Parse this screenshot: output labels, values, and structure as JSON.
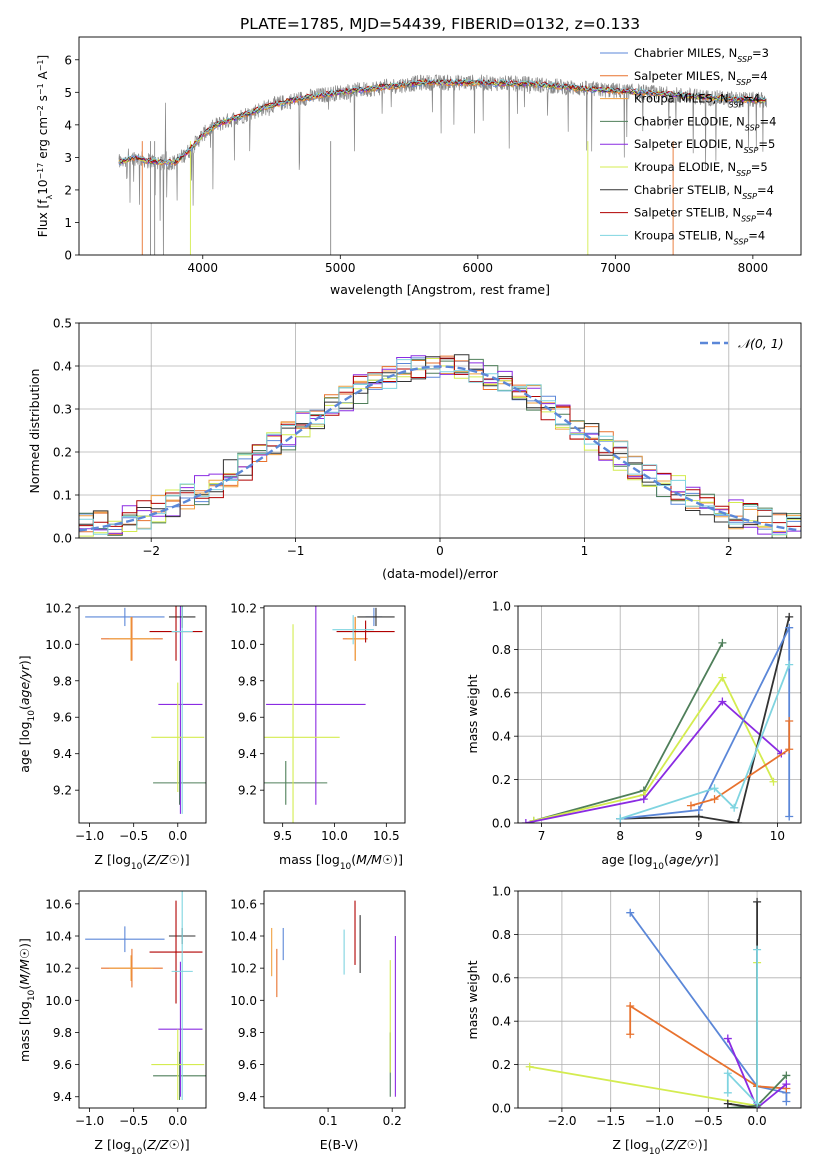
{
  "figure_title": "PLATE=1785, MJD=54439, FIBERID=0132, z=0.133",
  "colors": {
    "Chabrier MILES": "#5b87d8",
    "Salpeter MILES": "#e8722e",
    "Kroupa MILES": "#f0a040",
    "Chabrier ELODIE": "#4f7f5a",
    "Salpeter ELODIE": "#8a2be2",
    "Kroupa ELODIE": "#d4ec50",
    "Chabrier STELIB": "#333333",
    "Salpeter STELIB": "#b00000",
    "Kroupa STELIB": "#7fd4e0"
  },
  "chart_data": [
    {
      "id": "spectrum",
      "type": "line",
      "title": "",
      "xlabel": "wavelength [Angstrom, rest frame]",
      "ylabel": "Flux [f_λ 10^-17 erg cm^-2 s^-1 A^-1]",
      "xlim": [
        3100,
        8350
      ],
      "ylim": [
        0,
        6.7
      ],
      "xticks": [
        "4000",
        "5000",
        "6000",
        "7000",
        "8000"
      ],
      "yticks": [
        "0",
        "1",
        "2",
        "3",
        "4",
        "5",
        "6"
      ],
      "grid": false,
      "legend_position": "right",
      "legend": [
        {
          "key": "Chabrier MILES",
          "label": "Chabrier MILES, N",
          "sub": "SSP",
          "eq": "=3"
        },
        {
          "key": "Salpeter MILES",
          "label": "Salpeter MILES, N",
          "sub": "SSP",
          "eq": "=4"
        },
        {
          "key": "Kroupa MILES",
          "label": "Kroupa MILES, N",
          "sub": "SSP",
          "eq": "=4"
        },
        {
          "key": "Chabrier ELODIE",
          "label": "Chabrier ELODIE, N",
          "sub": "SSP",
          "eq": "=4"
        },
        {
          "key": "Salpeter ELODIE",
          "label": "Salpeter ELODIE, N",
          "sub": "SSP",
          "eq": "=5"
        },
        {
          "key": "Kroupa ELODIE",
          "label": "Kroupa ELODIE, N",
          "sub": "SSP",
          "eq": "=5"
        },
        {
          "key": "Chabrier STELIB",
          "label": "Chabrier STELIB, N",
          "sub": "SSP",
          "eq": "=4"
        },
        {
          "key": "Salpeter STELIB",
          "label": "Salpeter STELIB, N",
          "sub": "SSP",
          "eq": "=4"
        },
        {
          "key": "Kroupa STELIB",
          "label": "Kroupa STELIB, N",
          "sub": "SSP",
          "eq": "=4"
        }
      ],
      "continuum": {
        "x": [
          3390,
          3500,
          3600,
          3700,
          3800,
          3900,
          4000,
          4100,
          4200,
          4300,
          4500,
          4700,
          5000,
          5300,
          5600,
          6000,
          6400,
          6800,
          7200,
          7500,
          7800,
          8100
        ],
        "y": [
          2.85,
          3.0,
          2.9,
          2.85,
          2.85,
          3.2,
          3.7,
          4.0,
          4.15,
          4.3,
          4.6,
          4.8,
          5.0,
          5.15,
          5.3,
          5.3,
          5.25,
          5.1,
          5.0,
          4.9,
          4.8,
          4.75
        ]
      },
      "observed_xrange": [
        3390,
        8100
      ]
    },
    {
      "id": "residuals",
      "type": "histogram",
      "xlabel": "(data-model)/error",
      "ylabel": "Normed distribution",
      "xlim": [
        -2.5,
        2.5
      ],
      "ylim": [
        0,
        0.5
      ],
      "xticks": [
        "−2",
        "−1",
        "0",
        "1",
        "2"
      ],
      "yticks": [
        "0.0",
        "0.1",
        "0.2",
        "0.3",
        "0.4",
        "0.5"
      ],
      "grid": true,
      "legend_position": "top-right",
      "reference_label": "𝒩(0, 1)",
      "reference_color": "#5b87d8",
      "bin_width": 0.1
    },
    {
      "id": "age-Z",
      "type": "scatter",
      "xlabel": "Z [log10(Z/Z☉)]",
      "ylabel": "age  [log10(age/yr)]",
      "xlim": [
        -1.12,
        0.32
      ],
      "ylim": [
        9.02,
        10.21
      ],
      "xticks": [
        "−1.0",
        "−0.5",
        "0.0"
      ],
      "yticks": [
        "9.2",
        "9.4",
        "9.6",
        "9.8",
        "10.0",
        "10.2"
      ],
      "grid": false,
      "points": [
        {
          "key": "Chabrier MILES",
          "x": -0.6,
          "y": 10.15,
          "xerr": 0.45,
          "yerr": 0.05
        },
        {
          "key": "Salpeter MILES",
          "x": -0.52,
          "y": 10.03,
          "xerr": 0.35,
          "yerr": 0.12
        },
        {
          "key": "Kroupa MILES",
          "x": -0.53,
          "y": 10.03,
          "xerr": 0.25,
          "yerr": 0.12
        },
        {
          "key": "Chabrier ELODIE",
          "x": 0.02,
          "y": 9.24,
          "xerr": 0.3,
          "yerr": 0.12
        },
        {
          "key": "Salpeter ELODIE",
          "x": 0.03,
          "y": 9.67,
          "xerr": 0.25,
          "yerr": 0.6
        },
        {
          "key": "Kroupa ELODIE",
          "x": 0.0,
          "y": 9.49,
          "xerr": 0.3,
          "yerr": 0.3
        },
        {
          "key": "Chabrier STELIB",
          "x": 0.05,
          "y": 10.15,
          "xerr": 0.15,
          "yerr": 0.06
        },
        {
          "key": "Salpeter STELIB",
          "x": -0.02,
          "y": 10.07,
          "xerr": 0.3,
          "yerr": 0.16
        },
        {
          "key": "Kroupa STELIB",
          "x": 0.05,
          "y": 10.07,
          "xerr": 0.12,
          "yerr": 1.0
        }
      ]
    },
    {
      "id": "age-mass",
      "type": "scatter",
      "xlabel": "mass [log10(M/M☉)]",
      "ylabel": "",
      "xlim": [
        9.32,
        10.68
      ],
      "ylim": [
        9.02,
        10.21
      ],
      "xticks": [
        "9.5",
        "10.0",
        "10.5"
      ],
      "yticks": [
        "9.2",
        "9.4",
        "9.6",
        "9.8",
        "10.0",
        "10.2"
      ],
      "grid": false,
      "points": [
        {
          "key": "Chabrier MILES",
          "x": 10.38,
          "y": 10.15,
          "xerr": 0.08,
          "yerr": 0.05
        },
        {
          "key": "Salpeter MILES",
          "x": 10.2,
          "y": 10.03,
          "xerr": 0.12,
          "yerr": 0.12
        },
        {
          "key": "Kroupa MILES",
          "x": 10.2,
          "y": 10.03,
          "xerr": 0.08,
          "yerr": 0.12
        },
        {
          "key": "Chabrier ELODIE",
          "x": 9.53,
          "y": 9.24,
          "xerr": 0.4,
          "yerr": 0.12
        },
        {
          "key": "Salpeter ELODIE",
          "x": 9.82,
          "y": 9.67,
          "xerr": 0.48,
          "yerr": 0.55
        },
        {
          "key": "Kroupa ELODIE",
          "x": 9.6,
          "y": 9.49,
          "xerr": 0.45,
          "yerr": 0.62
        },
        {
          "key": "Chabrier STELIB",
          "x": 10.4,
          "y": 10.15,
          "xerr": 0.18,
          "yerr": 0.05
        },
        {
          "key": "Salpeter STELIB",
          "x": 10.3,
          "y": 10.07,
          "xerr": 0.28,
          "yerr": 0.06
        },
        {
          "key": "Kroupa STELIB",
          "x": 10.18,
          "y": 10.08,
          "xerr": 0.2,
          "yerr": 0.08
        }
      ]
    },
    {
      "id": "weight-age",
      "type": "line",
      "xlabel": "age  [log10(age/yr)]",
      "ylabel": "mass weight",
      "xlim": [
        6.7,
        10.3
      ],
      "ylim": [
        0,
        1
      ],
      "xticks": [
        "7",
        "8",
        "9",
        "10"
      ],
      "yticks": [
        "0.0",
        "0.2",
        "0.4",
        "0.6",
        "0.8",
        "1.0"
      ],
      "grid": true,
      "series": [
        {
          "key": "Chabrier ELODIE",
          "x": [
            6.9,
            8.3,
            9.3
          ],
          "y": [
            0.01,
            0.15,
            0.83
          ]
        },
        {
          "key": "Kroupa ELODIE",
          "x": [
            6.9,
            8.3,
            9.3,
            9.95
          ],
          "y": [
            0.01,
            0.13,
            0.67,
            0.19
          ]
        },
        {
          "key": "Salpeter ELODIE",
          "x": [
            6.8,
            8.3,
            9.3,
            10.05
          ],
          "y": [
            0.0,
            0.11,
            0.56,
            0.32
          ]
        },
        {
          "key": "Chabrier STELIB",
          "x": [
            8.0,
            9.0,
            9.5,
            10.15
          ],
          "y": [
            0.02,
            0.03,
            0.0,
            0.95
          ]
        },
        {
          "key": "Chabrier MILES",
          "x": [
            8.0,
            9.0,
            10.15,
            10.15
          ],
          "y": [
            0.02,
            0.06,
            0.9,
            0.03
          ]
        },
        {
          "key": "Salpeter MILES",
          "x": [
            8.9,
            9.2,
            10.15,
            10.15
          ],
          "y": [
            0.08,
            0.11,
            0.34,
            0.47
          ]
        },
        {
          "key": "Kroupa STELIB",
          "x": [
            8.0,
            9.2,
            9.45,
            10.15
          ],
          "y": [
            0.02,
            0.16,
            0.07,
            0.73
          ]
        }
      ]
    },
    {
      "id": "mass-Z",
      "type": "scatter",
      "xlabel": "Z [log10(Z/Z☉)]",
      "ylabel": "mass [log10(M/M☉)]",
      "xlim": [
        -1.12,
        0.32
      ],
      "ylim": [
        9.33,
        10.68
      ],
      "xticks": [
        "−1.0",
        "−0.5",
        "0.0"
      ],
      "yticks": [
        "9.4",
        "9.6",
        "9.8",
        "10.0",
        "10.2",
        "10.4",
        "10.6"
      ],
      "grid": false,
      "points": [
        {
          "key": "Chabrier MILES",
          "x": -0.6,
          "y": 10.38,
          "xerr": 0.45,
          "yerr": 0.08
        },
        {
          "key": "Salpeter MILES",
          "x": -0.52,
          "y": 10.2,
          "xerr": 0.35,
          "yerr": 0.12
        },
        {
          "key": "Kroupa MILES",
          "x": -0.53,
          "y": 10.2,
          "xerr": 0.25,
          "yerr": 0.08
        },
        {
          "key": "Chabrier ELODIE",
          "x": 0.02,
          "y": 9.53,
          "xerr": 0.3,
          "yerr": 0.15
        },
        {
          "key": "Salpeter ELODIE",
          "x": 0.03,
          "y": 9.82,
          "xerr": 0.25,
          "yerr": 0.42
        },
        {
          "key": "Kroupa ELODIE",
          "x": 0.0,
          "y": 9.6,
          "xerr": 0.3,
          "yerr": 0.22
        },
        {
          "key": "Chabrier STELIB",
          "x": 0.05,
          "y": 10.4,
          "xerr": 0.15,
          "yerr": 0.05
        },
        {
          "key": "Salpeter STELIB",
          "x": -0.02,
          "y": 10.3,
          "xerr": 0.3,
          "yerr": 0.32
        },
        {
          "key": "Kroupa STELIB",
          "x": 0.05,
          "y": 10.18,
          "xerr": 0.12,
          "yerr": 0.8
        }
      ]
    },
    {
      "id": "mass-ebv",
      "type": "errorbar",
      "xlabel": "E(B-V)",
      "ylabel": "",
      "xlim": [
        0.0,
        0.22
      ],
      "ylim": [
        9.33,
        10.68
      ],
      "xticks": [
        "0.1",
        "0.2"
      ],
      "yticks": [
        "9.4",
        "9.6",
        "9.8",
        "10.0",
        "10.2",
        "10.4",
        "10.6"
      ],
      "grid": false,
      "points": [
        {
          "key": "Chabrier MILES",
          "x": 0.03,
          "y": 10.35,
          "yerr": 0.1
        },
        {
          "key": "Salpeter MILES",
          "x": 0.02,
          "y": 10.17,
          "yerr": 0.15
        },
        {
          "key": "Kroupa MILES",
          "x": 0.012,
          "y": 10.3,
          "yerr": 0.15
        },
        {
          "key": "Chabrier ELODIE",
          "x": 0.197,
          "y": 9.6,
          "yerr": 0.2
        },
        {
          "key": "Salpeter ELODIE",
          "x": 0.205,
          "y": 9.9,
          "yerr": 0.5
        },
        {
          "key": "Kroupa ELODIE",
          "x": 0.197,
          "y": 9.9,
          "yerr": 0.35
        },
        {
          "key": "Chabrier STELIB",
          "x": 0.15,
          "y": 10.35,
          "yerr": 0.18
        },
        {
          "key": "Salpeter STELIB",
          "x": 0.142,
          "y": 10.42,
          "yerr": 0.2
        },
        {
          "key": "Kroupa STELIB",
          "x": 0.125,
          "y": 10.3,
          "yerr": 0.14
        }
      ]
    },
    {
      "id": "weight-Z",
      "type": "line",
      "xlabel": "Z [log10(Z/Z☉)]",
      "ylabel": "mass weight",
      "xlim": [
        -2.45,
        0.45
      ],
      "ylim": [
        0,
        1
      ],
      "xticks": [
        "−2.0",
        "−1.5",
        "−1.0",
        "−0.5",
        "0.0"
      ],
      "yticks": [
        "0.0",
        "0.2",
        "0.4",
        "0.6",
        "0.8",
        "1.0"
      ],
      "grid": true,
      "series": [
        {
          "key": "Chabrier MILES",
          "x": [
            -1.3,
            0.0,
            0.3,
            0.3
          ],
          "y": [
            0.9,
            0.1,
            0.07,
            0.03
          ]
        },
        {
          "key": "Salpeter MILES",
          "x": [
            -1.3,
            -1.3,
            0.0,
            0.3
          ],
          "y": [
            0.34,
            0.47,
            0.1,
            0.09
          ]
        },
        {
          "key": "Kroupa ELODIE",
          "x": [
            -2.33,
            0.0,
            0.0
          ],
          "y": [
            0.19,
            0.01,
            0.67
          ]
        },
        {
          "key": "Salpeter ELODIE",
          "x": [
            -0.3,
            0.0,
            0.3
          ],
          "y": [
            0.32,
            0.0,
            0.11
          ]
        },
        {
          "key": "Chabrier ELODIE",
          "x": [
            -0.3,
            0.0,
            0.3
          ],
          "y": [
            0.0,
            0.01,
            0.15
          ]
        },
        {
          "key": "Chabrier STELIB",
          "x": [
            -0.3,
            0.0,
            0.0
          ],
          "y": [
            0.02,
            0.0,
            0.95
          ]
        },
        {
          "key": "Kroupa STELIB",
          "x": [
            -0.3,
            -0.3,
            0.0,
            0.0
          ],
          "y": [
            0.07,
            0.16,
            0.02,
            0.73
          ]
        }
      ]
    }
  ]
}
